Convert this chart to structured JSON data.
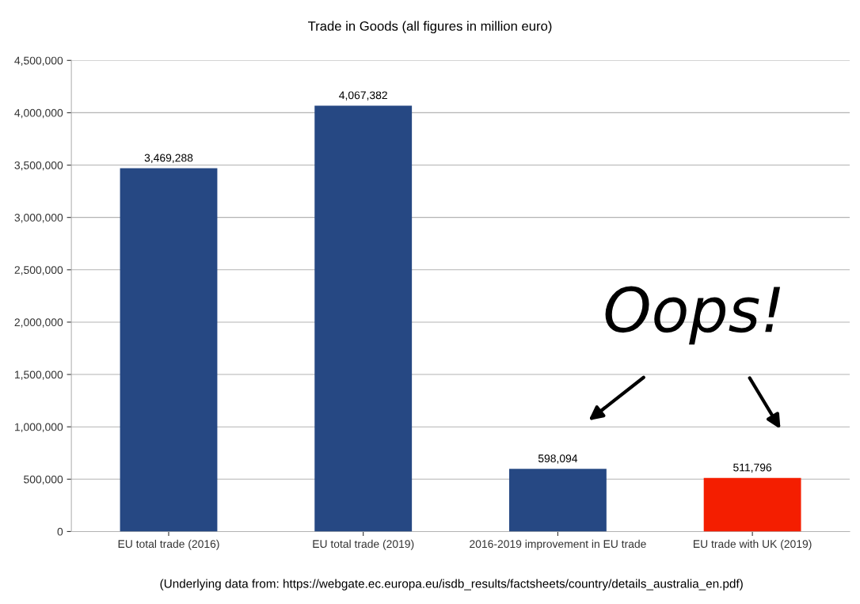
{
  "chart_data": {
    "type": "bar",
    "title": "Trade in Goods (all figures in million euro)",
    "categories": [
      "EU total trade (2016)",
      "EU total trade (2019)",
      "2016-2019 improvement in EU trade",
      "EU trade with UK (2019)"
    ],
    "values": [
      3469288,
      4067382,
      598094,
      511796
    ],
    "colors": [
      "#264883",
      "#264883",
      "#264883",
      "#f41e00"
    ],
    "value_labels": [
      "3,469,288",
      "4,067,382",
      "598,094",
      "511,796"
    ],
    "ylim": [
      0,
      4500000
    ],
    "yticks": [
      0,
      {
        "value": 500000,
        "label": "500,000"
      },
      {
        "value": 1000000,
        "label": "1,000,000"
      },
      {
        "value": 1500000,
        "label": "1,500,000"
      },
      {
        "value": 2000000,
        "label": "2,000,000"
      },
      {
        "value": 2500000,
        "label": "2,500,000"
      },
      {
        "value": 3000000,
        "label": "3,000,000"
      },
      {
        "value": 3500000,
        "label": "3,500,000"
      },
      {
        "value": 4000000,
        "label": "4,000,000"
      },
      {
        "value": 4500000,
        "label": "4,500,000"
      }
    ],
    "grid": "y",
    "annotations": [
      "Oops!",
      "(Underlying data from: https://webgate.ec.europa.eu/isdb_results/factsheets/country/details_australia_en.pdf)"
    ]
  }
}
